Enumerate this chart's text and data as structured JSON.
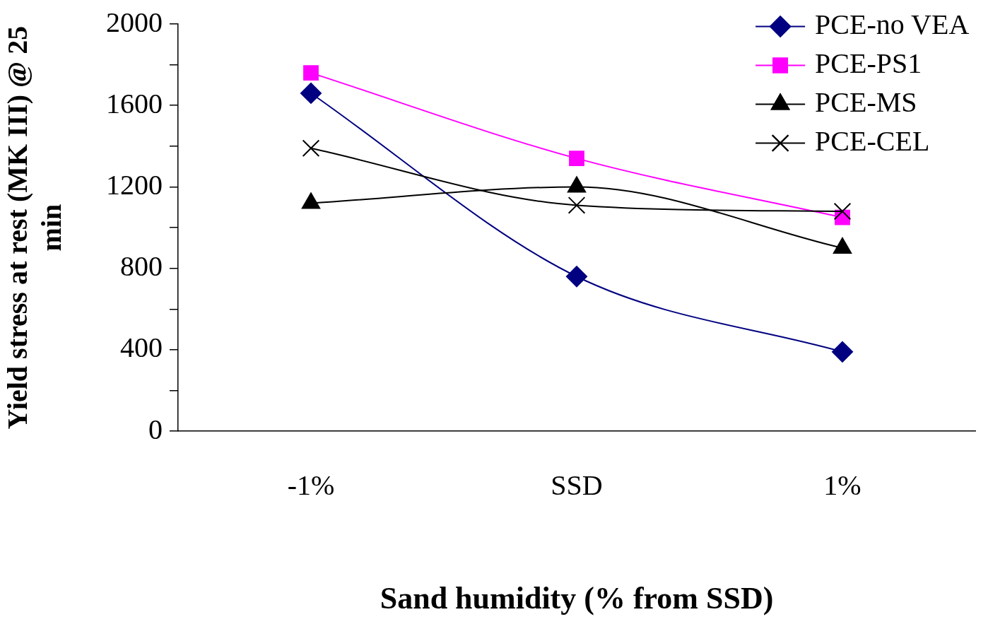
{
  "chart_data": {
    "type": "line",
    "xlabel": "Sand humidity (% from SSD)",
    "ylabel": "Yield stress at rest (MK III) @ 25 min",
    "categories": [
      "-1%",
      "SSD",
      "1%"
    ],
    "ylim": [
      0,
      2000
    ],
    "yticks": [
      0,
      {
        "value": 200,
        "label": null
      },
      400,
      {
        "value": 600,
        "label": null
      },
      800,
      {
        "value": 1000,
        "label": null
      },
      1200,
      {
        "value": 1400,
        "label": null
      },
      1600,
      {
        "value": 1800,
        "label": null
      },
      2000
    ],
    "grid": false,
    "legend": "top right",
    "line_style": "solid",
    "series": [
      {
        "name": "PCE-no VEA",
        "color": "#000080",
        "marker": "diamond",
        "values": [
          1660,
          760,
          390
        ]
      },
      {
        "name": "PCE-PS1",
        "color": "#ff00ff",
        "marker": "square",
        "values": [
          1760,
          1340,
          1050
        ]
      },
      {
        "name": "PCE-MS",
        "color": "#000000",
        "marker": "triangle",
        "values": [
          1120,
          1200,
          900
        ]
      },
      {
        "name": "PCE-CEL",
        "color": "#000000",
        "marker": "cross",
        "values": [
          1390,
          1110,
          1080
        ]
      }
    ]
  }
}
